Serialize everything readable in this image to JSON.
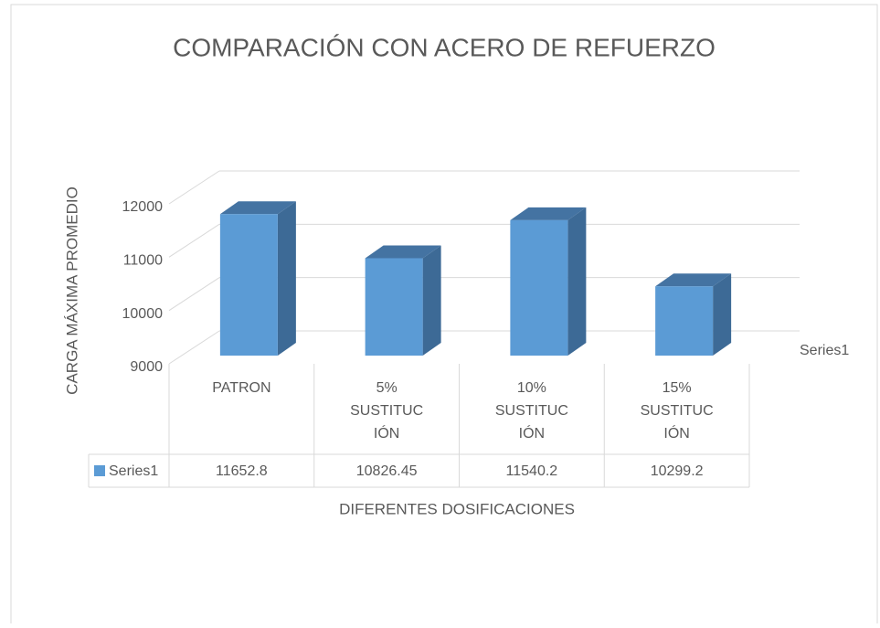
{
  "chart_data": {
    "type": "bar3d",
    "title": "COMPARACIÓN CON ACERO DE REFUERZO",
    "x_label": "DIFERENTES DOSIFICACIONES",
    "y_label": "CARGA MÁXIMA PROMEDIO",
    "categories": [
      "PATRON",
      "5% SUSTITUCIÓN",
      "10% SUSTITUCIÓN",
      "15% SUSTITUCIÓN"
    ],
    "series": [
      {
        "name": "Series1",
        "color": "#5b9bd5",
        "values": [
          11652.8,
          10826.45,
          11540.2,
          10299.2
        ]
      }
    ],
    "ylim": [
      9000,
      12000
    ],
    "yticks": [
      9000,
      10000,
      11000,
      12000
    ],
    "grid": true,
    "data_table": true
  }
}
